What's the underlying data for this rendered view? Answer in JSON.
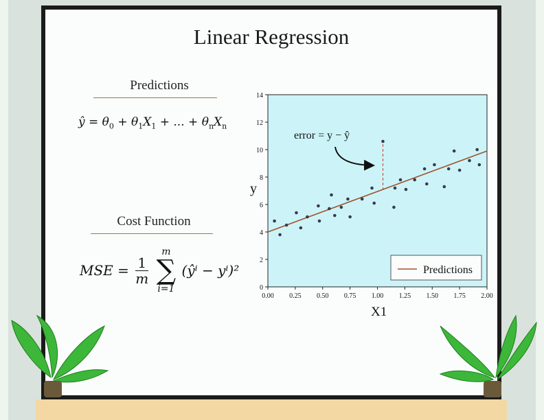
{
  "title": "Linear Regression",
  "predictions": {
    "heading": "Predictions",
    "equation": {
      "y_hat": "ŷ",
      "equals": "=",
      "theta": "θ",
      "x": "X",
      "sub_0": "0",
      "sub_1": "1",
      "sub_n": "n",
      "plus": "+",
      "ellipsis": "...",
      "text": "ŷ = θ0 + θ1X1 + ... + θnXn"
    }
  },
  "cost_function": {
    "heading": "Cost Function",
    "equation": {
      "lhs": "MSE",
      "equals": "=",
      "frac_num": "1",
      "frac_den": "m",
      "sum_upper": "m",
      "sum_lower": "i=1",
      "sum_symbol": "∑",
      "body": "(ŷⁱ − yⁱ)²",
      "text": "MSE = 1/m ∑ (ŷ^i − y^i)^2"
    }
  },
  "chart_data": {
    "type": "scatter",
    "xlabel": "X1",
    "ylabel": "y",
    "xlim": [
      0,
      2
    ],
    "ylim": [
      0,
      14
    ],
    "x_ticks": [
      "0.00",
      "0.25",
      "0.50",
      "0.75",
      "1.00",
      "1.25",
      "1.50",
      "1.75",
      "2.00"
    ],
    "y_ticks": [
      "0",
      "2",
      "4",
      "6",
      "8",
      "10",
      "12",
      "14"
    ],
    "legend": {
      "entries": [
        "Predictions"
      ],
      "placement": "bottom-right"
    },
    "annotation": {
      "text": "error = y − ŷ",
      "point": [
        1.05,
        10.6
      ],
      "line_to": [
        1.05,
        7.1
      ]
    },
    "line": {
      "name": "Predictions",
      "intercept": 4.0,
      "slope": 2.95,
      "color": "#a0522d"
    },
    "series": [
      {
        "points": [
          [
            0.06,
            4.8
          ],
          [
            0.11,
            3.8
          ],
          [
            0.17,
            4.5
          ],
          [
            0.26,
            5.4
          ],
          [
            0.3,
            4.3
          ],
          [
            0.36,
            5.1
          ],
          [
            0.46,
            5.9
          ],
          [
            0.47,
            4.8
          ],
          [
            0.56,
            5.7
          ],
          [
            0.58,
            6.7
          ],
          [
            0.61,
            5.2
          ],
          [
            0.67,
            5.8
          ],
          [
            0.73,
            6.4
          ],
          [
            0.75,
            5.1
          ],
          [
            0.86,
            6.4
          ],
          [
            0.95,
            7.2
          ],
          [
            0.97,
            6.1
          ],
          [
            1.05,
            10.6
          ],
          [
            1.15,
            5.8
          ],
          [
            1.16,
            7.2
          ],
          [
            1.21,
            7.8
          ],
          [
            1.26,
            7.1
          ],
          [
            1.34,
            7.8
          ],
          [
            1.43,
            8.6
          ],
          [
            1.45,
            7.5
          ],
          [
            1.52,
            8.9
          ],
          [
            1.61,
            7.3
          ],
          [
            1.65,
            8.6
          ],
          [
            1.7,
            9.9
          ],
          [
            1.75,
            8.5
          ],
          [
            1.84,
            9.2
          ],
          [
            1.91,
            10.0
          ],
          [
            1.93,
            8.9
          ]
        ],
        "color": "#3a3a4a"
      }
    ],
    "background": "#ccf4f8"
  },
  "colors": {
    "board_border": "#1b1b1b",
    "floor": "#f3d8a4",
    "leaf": "#3cb73a",
    "pot": "#6b5a3a"
  }
}
